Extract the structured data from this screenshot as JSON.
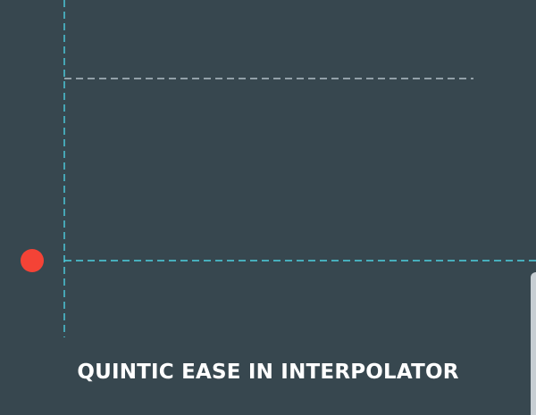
{
  "screen": {
    "title": "QUINTIC EASE IN INTERPOLATOR"
  },
  "colors": {
    "background": "#37474f",
    "axis": "#4dd0e1",
    "guide": "#b0bec5",
    "ball": "#f44336",
    "title": "#ffffff"
  }
}
